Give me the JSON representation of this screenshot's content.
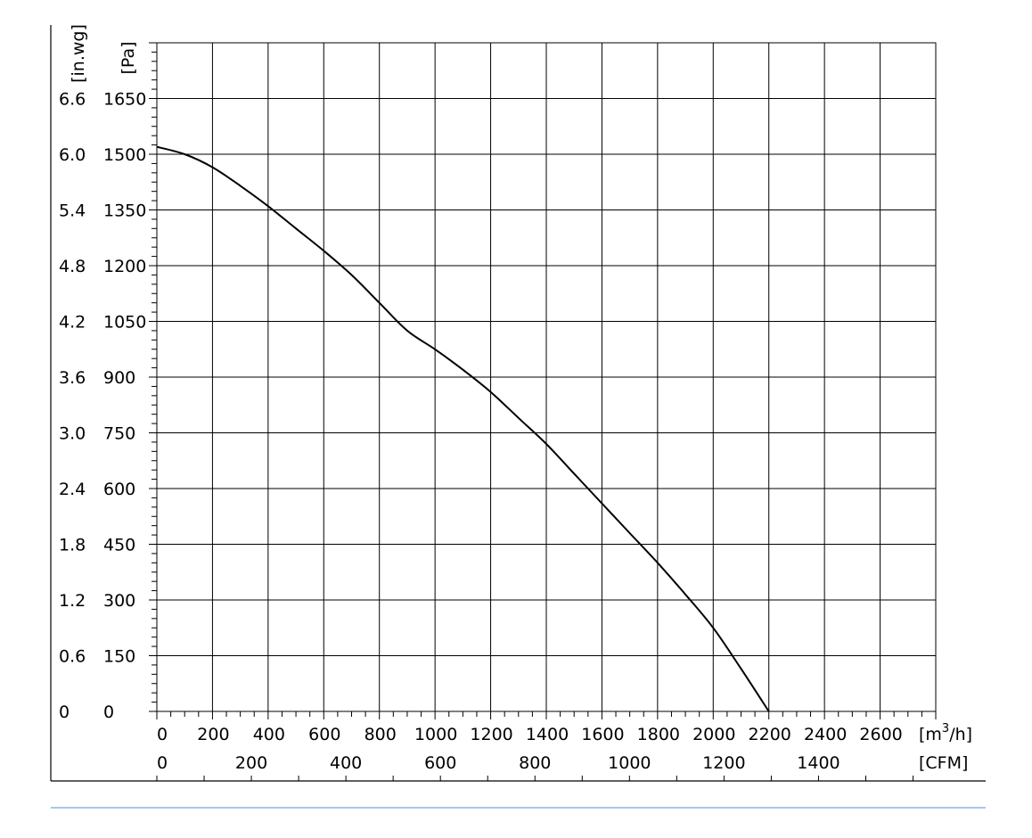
{
  "chart_data": {
    "type": "line",
    "x_unit_primary": "[m",
    "x_unit_primary_sup": "3",
    "x_unit_primary_tail": "/h]",
    "x_unit_secondary": "[CFM]",
    "y_unit_primary": "[Pa]",
    "y_unit_secondary": "[in.wg]",
    "xlim": [
      0,
      2800
    ],
    "ylim": [
      0,
      1800
    ],
    "x_ticks": [
      0,
      200,
      400,
      600,
      800,
      1000,
      1200,
      1400,
      1600,
      1800,
      2000,
      2200,
      2400,
      2600
    ],
    "x_secondary_ticks": [
      0,
      200,
      400,
      600,
      800,
      1000,
      1200,
      1400
    ],
    "x_secondary_scale": 1.699,
    "y_ticks": [
      0,
      150,
      300,
      450,
      600,
      750,
      900,
      1050,
      1200,
      1350,
      1500,
      1650
    ],
    "y_secondary_ticks": [
      "0",
      "0.6",
      "1.2",
      "1.8",
      "2.4",
      "3.0",
      "3.6",
      "4.2",
      "4.8",
      "5.4",
      "6.0",
      "6.6"
    ],
    "grid": true,
    "series": [
      {
        "x": [
          0,
          100,
          200,
          300,
          400,
          500,
          600,
          700,
          800,
          900,
          1000,
          1100,
          1200,
          1300,
          1400,
          1500,
          1600,
          1700,
          1800,
          1900,
          2000,
          2100,
          2200
        ],
        "y": [
          1520,
          1500,
          1465,
          1415,
          1360,
          1300,
          1240,
          1175,
          1100,
          1025,
          975,
          920,
          860,
          790,
          720,
          640,
          560,
          480,
          400,
          315,
          225,
          115,
          0
        ]
      }
    ]
  }
}
